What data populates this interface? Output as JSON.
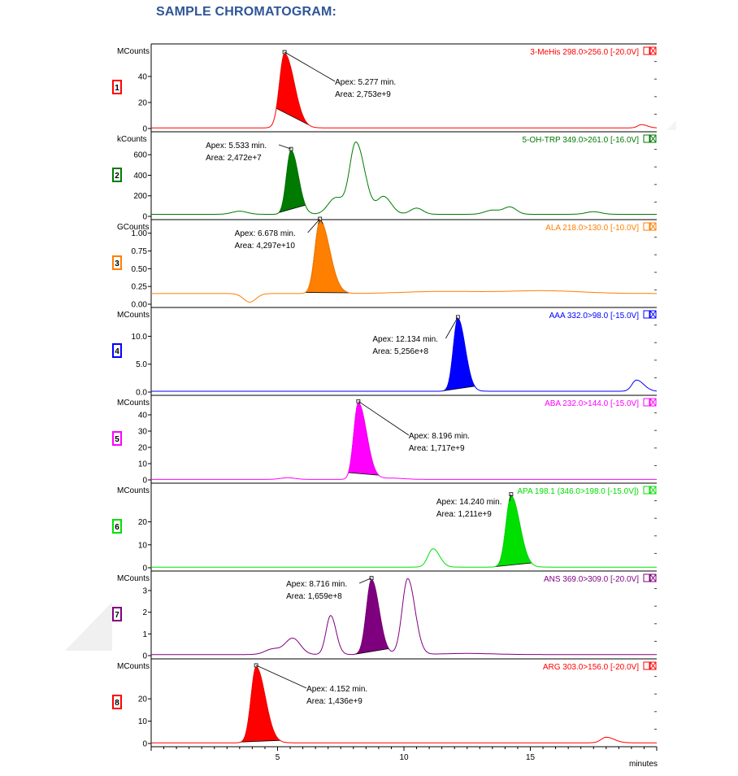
{
  "page_title": "SAMPLE CHROMATOGRAM:",
  "x_axis_label": "minutes",
  "chart_data": {
    "type": "line",
    "x_ticks": [
      5,
      10,
      15
    ],
    "xlim": [
      0,
      20
    ],
    "xlabel": "minutes",
    "panels": [
      {
        "number": "1",
        "unit": "MCounts",
        "color": "#ff0000",
        "trace_label": "3-MeHis 298.0>256.0 [-20.0V]",
        "yticks": [
          {
            "v": 0,
            "label": "0"
          },
          {
            "v": 20,
            "label": "20"
          },
          {
            "v": 40,
            "label": "40"
          }
        ],
        "ylim": [
          0,
          60
        ],
        "baseline": 0.5,
        "apex": 5.277,
        "apex_label": "Apex: 5.277 min.",
        "area_label": "Area: 2,753e+9",
        "peaks": [
          {
            "t": 5.277,
            "h": 57,
            "w": 0.2,
            "tail": 1.9,
            "filled": true,
            "from": 4.95,
            "to": 6.25
          },
          {
            "t": 19.4,
            "h": 2.5,
            "w": 0.15,
            "tail": 1.5,
            "filled": false
          }
        ]
      },
      {
        "number": "2",
        "unit": "kCounts",
        "color": "#007a00",
        "trace_label": "5-OH-TRP 349.0>261.0 [-16.0V]",
        "yticks": [
          {
            "v": 0,
            "label": "0"
          },
          {
            "v": 200,
            "label": "200"
          },
          {
            "v": 400,
            "label": "400"
          },
          {
            "v": 600,
            "label": "600"
          }
        ],
        "ylim": [
          0,
          760
        ],
        "baseline": 20,
        "apex": 5.533,
        "apex_label": "Apex: 5.533 min.",
        "area_label": "Area: 2,472e+7",
        "peaks": [
          {
            "t": 5.533,
            "h": 620,
            "w": 0.18,
            "tail": 1.6,
            "filled": true,
            "from": 5.05,
            "to": 6.1
          },
          {
            "t": 3.5,
            "h": 30,
            "w": 0.3,
            "tail": 1,
            "filled": false
          },
          {
            "t": 7.3,
            "h": 160,
            "w": 0.3,
            "tail": 1,
            "filled": false
          },
          {
            "t": 8.1,
            "h": 700,
            "w": 0.25,
            "tail": 1.4,
            "filled": false
          },
          {
            "t": 9.2,
            "h": 170,
            "w": 0.25,
            "tail": 1.2,
            "filled": false
          },
          {
            "t": 10.5,
            "h": 60,
            "w": 0.25,
            "tail": 1,
            "filled": false
          },
          {
            "t": 13.5,
            "h": 40,
            "w": 0.3,
            "tail": 1,
            "filled": false
          },
          {
            "t": 14.2,
            "h": 70,
            "w": 0.25,
            "tail": 1,
            "filled": false
          },
          {
            "t": 17.5,
            "h": 25,
            "w": 0.3,
            "tail": 1,
            "filled": false
          }
        ]
      },
      {
        "number": "3",
        "unit": "GCounts",
        "color": "#ff7f00",
        "trace_label": "ALA 218.0>130.0 [-10.0V]",
        "yticks": [
          {
            "v": 0,
            "label": "0.00"
          },
          {
            "v": 0.25,
            "label": "0.25"
          },
          {
            "v": 0.5,
            "label": "0.50"
          },
          {
            "v": 0.75,
            "label": "0.75"
          },
          {
            "v": 1.0,
            "label": "1.00"
          }
        ],
        "ylim": [
          0,
          1.1
        ],
        "baseline": 0.15,
        "apex": 6.678,
        "apex_label": "Apex: 6.678 min.",
        "area_label": "Area: 4,297e+10",
        "peaks": [
          {
            "t": 6.678,
            "h": 1.03,
            "w": 0.2,
            "tail": 1.9,
            "filled": true,
            "from": 6.1,
            "to": 7.85
          },
          {
            "t": 3.9,
            "h": -0.12,
            "w": 0.25,
            "tail": 1,
            "filled": false
          },
          {
            "t": 11.5,
            "h": 0.03,
            "w": 1.5,
            "tail": 1,
            "filled": false
          },
          {
            "t": 15.5,
            "h": 0.04,
            "w": 1.5,
            "tail": 1,
            "filled": false
          }
        ]
      },
      {
        "number": "4",
        "unit": "MCounts",
        "color": "#0000ff",
        "trace_label": "AAA 332.0>98.0 [-15.0V]",
        "yticks": [
          {
            "v": 0,
            "label": "0.0"
          },
          {
            "v": 5,
            "label": "5.0"
          },
          {
            "v": 10,
            "label": "10.0"
          }
        ],
        "ylim": [
          0,
          14
        ],
        "baseline": 0.15,
        "apex": 12.134,
        "apex_label": "Apex: 12.134 min.",
        "area_label": "Area: 5,256e+8",
        "peaks": [
          {
            "t": 12.134,
            "h": 13,
            "w": 0.18,
            "tail": 1.6,
            "filled": true,
            "from": 11.55,
            "to": 12.8
          },
          {
            "t": 19.2,
            "h": 2,
            "w": 0.18,
            "tail": 1.6,
            "filled": false
          }
        ]
      },
      {
        "number": "5",
        "unit": "MCounts",
        "color": "#ff00ff",
        "trace_label": "ABA 232.0>144.0 [-15.0V]",
        "yticks": [
          {
            "v": 0,
            "label": "0"
          },
          {
            "v": 10,
            "label": "10"
          },
          {
            "v": 20,
            "label": "20"
          },
          {
            "v": 30,
            "label": "30"
          },
          {
            "v": 40,
            "label": "40"
          }
        ],
        "ylim": [
          0,
          48
        ],
        "baseline": 0.3,
        "apex": 8.196,
        "apex_label": "Apex: 8.196 min.",
        "area_label": "Area: 1,717e+9",
        "peaks": [
          {
            "t": 8.196,
            "h": 47,
            "w": 0.18,
            "tail": 1.8,
            "filled": true,
            "from": 7.8,
            "to": 9.0
          },
          {
            "t": 5.4,
            "h": 1,
            "w": 0.3,
            "tail": 1,
            "filled": false
          },
          {
            "t": 9.5,
            "h": 0.8,
            "w": 0.5,
            "tail": 1,
            "filled": false
          }
        ]
      },
      {
        "number": "6",
        "unit": "MCounts",
        "color": "#00e000",
        "trace_label": "APA 198.1 (346.0>198.0 [-15.0V])",
        "yticks": [
          {
            "v": 0,
            "label": "0"
          },
          {
            "v": 10,
            "label": "10"
          },
          {
            "v": 20,
            "label": "20"
          }
        ],
        "ylim": [
          0,
          34
        ],
        "baseline": 0.3,
        "apex": 14.24,
        "apex_label": "Apex: 14.240 min.",
        "area_label": "Area: 1,211e+9",
        "peaks": [
          {
            "t": 14.24,
            "h": 31,
            "w": 0.2,
            "tail": 1.7,
            "filled": true,
            "from": 13.6,
            "to": 15.05
          },
          {
            "t": 11.15,
            "h": 8,
            "w": 0.2,
            "tail": 1.3,
            "filled": false
          }
        ]
      },
      {
        "number": "7",
        "unit": "MCounts",
        "color": "#7f007f",
        "trace_label": "ANS 369.0>309.0 [-20.0V]",
        "yticks": [
          {
            "v": 0,
            "label": "0"
          },
          {
            "v": 1,
            "label": "1"
          },
          {
            "v": 2,
            "label": "2"
          },
          {
            "v": 3,
            "label": "3"
          }
        ],
        "ylim": [
          0,
          3.6
        ],
        "baseline": 0.05,
        "apex": 8.716,
        "apex_label": "Apex: 8.716 min.",
        "area_label": "Area: 1,659e+8",
        "peaks": [
          {
            "t": 8.716,
            "h": 3.45,
            "w": 0.2,
            "tail": 1.5,
            "filled": true,
            "from": 8.05,
            "to": 9.4
          },
          {
            "t": 5.6,
            "h": 0.75,
            "w": 0.3,
            "tail": 1,
            "filled": false
          },
          {
            "t": 4.8,
            "h": 0.25,
            "w": 0.3,
            "tail": 1,
            "filled": false
          },
          {
            "t": 7.1,
            "h": 1.8,
            "w": 0.18,
            "tail": 1.2,
            "filled": false
          },
          {
            "t": 10.15,
            "h": 3.5,
            "w": 0.22,
            "tail": 1.3,
            "filled": false
          },
          {
            "t": 12.5,
            "h": 0.05,
            "w": 1,
            "tail": 1,
            "filled": false
          }
        ]
      },
      {
        "number": "8",
        "unit": "MCounts",
        "color": "#ff0000",
        "trace_label": "ARG 303.0>156.0 [-20.0V]",
        "yticks": [
          {
            "v": 0,
            "label": "0"
          },
          {
            "v": 10,
            "label": "10"
          },
          {
            "v": 20,
            "label": "20"
          }
        ],
        "ylim": [
          0,
          35
        ],
        "baseline": 0.3,
        "apex": 4.152,
        "apex_label": "Apex: 4.152 min.",
        "area_label": "Area: 1,436e+9",
        "peaks": [
          {
            "t": 4.152,
            "h": 34,
            "w": 0.2,
            "tail": 1.8,
            "filled": true,
            "from": 3.55,
            "to": 5.1
          },
          {
            "t": 18.0,
            "h": 2.5,
            "w": 0.2,
            "tail": 1.6,
            "filled": false
          }
        ]
      }
    ]
  }
}
